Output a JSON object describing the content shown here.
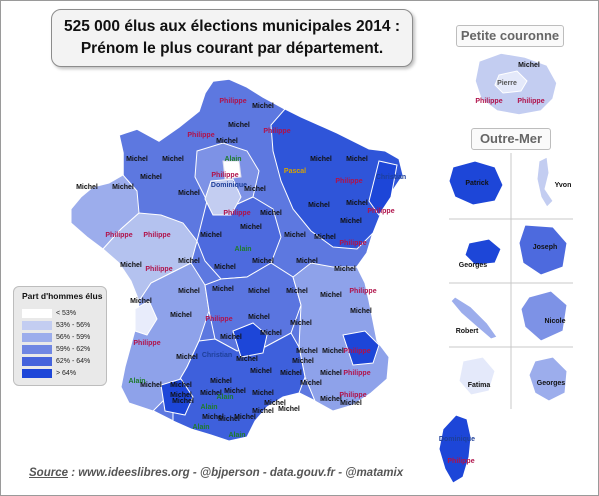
{
  "title": {
    "line1": "525 000 élus aux élections municipales 2014 :",
    "line2": "Prénom le plus courant par département."
  },
  "panels": {
    "petite_couronne": "Petite couronne",
    "outre_mer": "Outre-Mer"
  },
  "legend": {
    "title": "Part d'hommes élus",
    "items": [
      {
        "label": "< 53%",
        "color": "#ffffff"
      },
      {
        "label": "53% - 56%",
        "color": "#c3cdf1"
      },
      {
        "label": "56% - 59%",
        "color": "#9cadec"
      },
      {
        "label": "59% - 62%",
        "color": "#6f86e3"
      },
      {
        "label": "62% - 64%",
        "color": "#4563dc"
      },
      {
        "label": "> 64%",
        "color": "#1d46d8"
      }
    ]
  },
  "label_colors": {
    "Michel": "#111111",
    "Philippe": "#b0124a",
    "Alain": "#1f7a2c",
    "Christian": "#1e3f99",
    "Dominique": "#1e3f99",
    "Pascal": "#d8a300",
    "Pierre": "#555555"
  },
  "map_labels": [
    {
      "name": "Philippe"
    },
    {
      "name": "Michel"
    },
    {
      "name": "Philippe"
    },
    {
      "name": "Philippe"
    },
    {
      "name": "Michel"
    },
    {
      "name": "Michel"
    },
    {
      "name": "Alain"
    },
    {
      "name": "Philippe"
    },
    {
      "name": "Dominique"
    },
    {
      "name": "Pascal"
    },
    {
      "name": "Michel"
    },
    {
      "name": "Philippe"
    },
    {
      "name": "Christian"
    },
    {
      "name": "Michel"
    },
    {
      "name": "Michel"
    },
    {
      "name": "Michel"
    },
    {
      "name": "Michel"
    },
    {
      "name": "Michel"
    },
    {
      "name": "Michel"
    },
    {
      "name": "Michel"
    },
    {
      "name": "Michel"
    },
    {
      "name": "Philippe"
    },
    {
      "name": "Michel"
    },
    {
      "name": "Michel"
    },
    {
      "name": "Michel"
    },
    {
      "name": "Michel"
    },
    {
      "name": "Philippe"
    },
    {
      "name": "Philippe"
    },
    {
      "name": "Philippe"
    },
    {
      "name": "Michel"
    },
    {
      "name": "Michel"
    },
    {
      "name": "Alain"
    },
    {
      "name": "Michel"
    },
    {
      "name": "Michel"
    },
    {
      "name": "Philippe"
    },
    {
      "name": "Michel"
    },
    {
      "name": "Philippe"
    },
    {
      "name": "Michel"
    },
    {
      "name": "Michel"
    },
    {
      "name": "Michel"
    },
    {
      "name": "Michel"
    },
    {
      "name": "Michel"
    },
    {
      "name": "Philippe"
    },
    {
      "name": "Michel"
    },
    {
      "name": "Michel"
    },
    {
      "name": "Michel"
    },
    {
      "name": "Michel"
    },
    {
      "name": "Michel"
    },
    {
      "name": "Michel"
    },
    {
      "name": "Michel"
    },
    {
      "name": "Philippe"
    },
    {
      "name": "Michel"
    },
    {
      "name": "Michel"
    },
    {
      "name": "Michel"
    },
    {
      "name": "Michel"
    },
    {
      "name": "Michel"
    },
    {
      "name": "Michel"
    },
    {
      "name": "Michel"
    },
    {
      "name": "Philippe"
    },
    {
      "name": "Christian"
    },
    {
      "name": "Michel"
    },
    {
      "name": "Michel"
    },
    {
      "name": "Michel"
    },
    {
      "name": "Michel"
    },
    {
      "name": "Michel"
    },
    {
      "name": "Michel"
    },
    {
      "name": "Michel"
    },
    {
      "name": "Michel"
    },
    {
      "name": "Michel"
    },
    {
      "name": "Michel"
    },
    {
      "name": "Philippe"
    },
    {
      "name": "Philippe"
    },
    {
      "name": "Alain"
    },
    {
      "name": "Michel"
    },
    {
      "name": "Michel"
    },
    {
      "name": "Michel"
    },
    {
      "name": "Michel"
    },
    {
      "name": "Michel"
    },
    {
      "name": "Michel"
    },
    {
      "name": "Michel"
    },
    {
      "name": "Alain"
    },
    {
      "name": "Michel"
    },
    {
      "name": "Alain"
    },
    {
      "name": "Michel"
    },
    {
      "name": "Michel"
    },
    {
      "name": "Michel"
    },
    {
      "name": "Alain"
    },
    {
      "name": "Alain"
    },
    {
      "name": "Michel"
    },
    {
      "name": "Philippe"
    },
    {
      "name": "Michel"
    },
    {
      "name": "Dominique"
    },
    {
      "name": "Philippe"
    }
  ],
  "petite_couronne_labels": [
    {
      "name": "Michel"
    },
    {
      "name": "Pierre"
    },
    {
      "name": "Philippe"
    },
    {
      "name": "Philippe"
    }
  ],
  "outre_mer_labels": [
    {
      "name": "Patrick"
    },
    {
      "name": "Yvon"
    },
    {
      "name": "Georges"
    },
    {
      "name": "Joseph"
    },
    {
      "name": "Robert"
    },
    {
      "name": "Nicole"
    },
    {
      "name": "Fatima"
    },
    {
      "name": "Georges"
    }
  ],
  "source": {
    "label": "Source",
    "text": " : www.ideeslibres.org - @bjperson - data.gouv.fr - @matamix"
  }
}
